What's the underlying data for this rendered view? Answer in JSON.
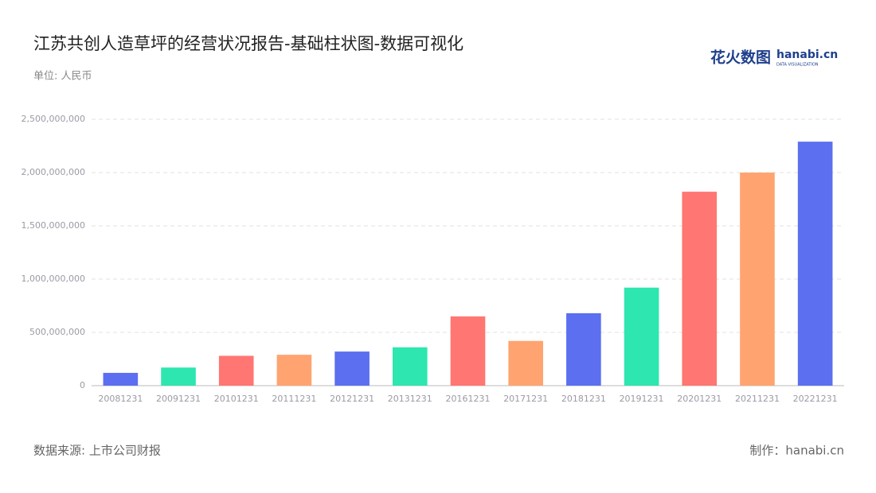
{
  "chart_data": {
    "type": "bar",
    "title": "江苏共创人造草坪的经营状况报告-基础柱状图-数据可视化",
    "subtitle": "单位: 人民币",
    "source": "数据来源: 上市公司财报",
    "credit": "制作：hanabi.cn",
    "logo": {
      "name": "花火数图",
      "site": "hanabi.cn",
      "tagline": "DATA VISUALIZATION"
    },
    "categories": [
      "20081231",
      "20091231",
      "20101231",
      "20111231",
      "20121231",
      "20131231",
      "20161231",
      "20171231",
      "20181231",
      "20191231",
      "20201231",
      "20211231",
      "20221231"
    ],
    "values": [
      120000000,
      170000000,
      280000000,
      290000000,
      320000000,
      360000000,
      650000000,
      420000000,
      680000000,
      920000000,
      1820000000,
      2000000000,
      2290000000
    ],
    "colors": [
      "#5b6ff0",
      "#2ee6b0",
      "#ff7672",
      "#ffa470",
      "#5b6ff0",
      "#2ee6b0",
      "#ff7672",
      "#ffa470",
      "#5b6ff0",
      "#2ee6b0",
      "#ff7672",
      "#ffa470",
      "#5b6ff0"
    ],
    "ylim": [
      0,
      2500000000
    ],
    "yticks": [
      0,
      {
        "value": 500000000,
        "label": "500,000,000"
      },
      {
        "value": 1000000000,
        "label": "1,000,000,000"
      },
      {
        "value": 1500000000,
        "label": "1,500,000,000"
      },
      {
        "value": 2000000000,
        "label": "2,000,000,000"
      },
      {
        "value": 2500000000,
        "label": "2,500,000,000"
      }
    ],
    "grid": true
  }
}
